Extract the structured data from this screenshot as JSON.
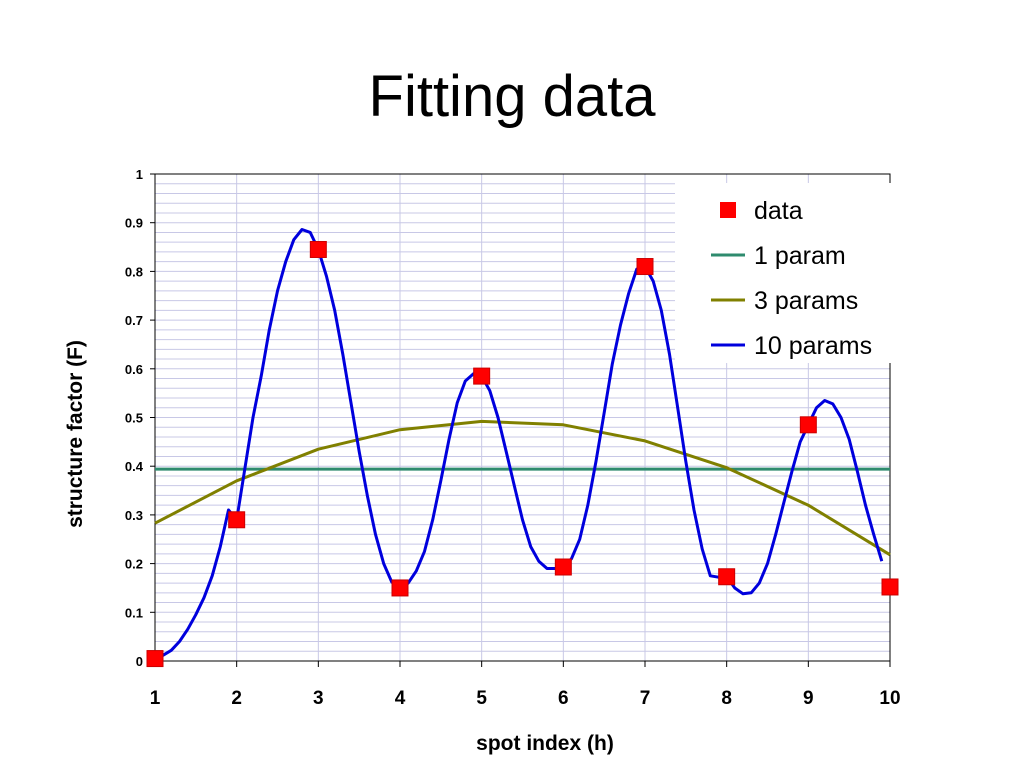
{
  "chart_data": {
    "type": "line",
    "title": "Fitting data",
    "xlabel": "spot index (h)",
    "ylabel": "structure factor (F)",
    "xlim": [
      1,
      10
    ],
    "ylim": [
      0,
      1
    ],
    "x_ticks": [
      "1",
      "2",
      "3",
      "4",
      "5",
      "6",
      "7",
      "8",
      "9",
      "10"
    ],
    "y_ticks": [
      "0",
      "0.1",
      "0.2",
      "0.3",
      "0.4",
      "0.5",
      "0.6",
      "0.7",
      "0.8",
      "0.9",
      "1"
    ],
    "grid": true,
    "legend_position": "top-right",
    "series": [
      {
        "name": "data",
        "style": "markers",
        "color": "#ff0000",
        "points": [
          [
            1,
            0.005
          ],
          [
            2,
            0.29
          ],
          [
            3,
            0.845
          ],
          [
            4,
            0.15
          ],
          [
            5,
            0.585
          ],
          [
            6,
            0.193
          ],
          [
            7,
            0.81
          ],
          [
            8,
            0.173
          ],
          [
            9,
            0.485
          ],
          [
            10,
            0.152
          ]
        ]
      },
      {
        "name": "1 param",
        "style": "line",
        "color": "#2e8b6e",
        "points": [
          [
            1,
            0.394
          ],
          [
            10,
            0.394
          ]
        ]
      },
      {
        "name": "3 params",
        "style": "line",
        "color": "#808000",
        "points": [
          [
            1,
            0.283
          ],
          [
            2,
            0.37
          ],
          [
            3,
            0.435
          ],
          [
            4,
            0.475
          ],
          [
            5,
            0.492
          ],
          [
            6,
            0.485
          ],
          [
            7,
            0.452
          ],
          [
            8,
            0.397
          ],
          [
            9,
            0.32
          ],
          [
            10,
            0.218
          ]
        ]
      },
      {
        "name": "10 params",
        "style": "line",
        "color": "#0000dd",
        "points": [
          [
            1,
            0.005
          ],
          [
            1.1,
            0.012
          ],
          [
            1.2,
            0.022
          ],
          [
            1.3,
            0.04
          ],
          [
            1.4,
            0.065
          ],
          [
            1.5,
            0.095
          ],
          [
            1.6,
            0.13
          ],
          [
            1.7,
            0.175
          ],
          [
            1.8,
            0.235
          ],
          [
            1.9,
            0.31
          ],
          [
            2,
            0.29
          ],
          [
            2.2,
            0.5
          ],
          [
            2.3,
            0.585
          ],
          [
            2.4,
            0.68
          ],
          [
            2.5,
            0.76
          ],
          [
            2.6,
            0.82
          ],
          [
            2.7,
            0.865
          ],
          [
            2.8,
            0.886
          ],
          [
            2.9,
            0.88
          ],
          [
            3,
            0.845
          ],
          [
            3.1,
            0.79
          ],
          [
            3.2,
            0.72
          ],
          [
            3.3,
            0.63
          ],
          [
            3.4,
            0.53
          ],
          [
            3.5,
            0.43
          ],
          [
            3.6,
            0.34
          ],
          [
            3.7,
            0.26
          ],
          [
            3.8,
            0.2
          ],
          [
            3.9,
            0.162
          ],
          [
            4,
            0.15
          ],
          [
            4.1,
            0.16
          ],
          [
            4.2,
            0.185
          ],
          [
            4.3,
            0.225
          ],
          [
            4.4,
            0.29
          ],
          [
            4.5,
            0.37
          ],
          [
            4.6,
            0.455
          ],
          [
            4.7,
            0.53
          ],
          [
            4.8,
            0.575
          ],
          [
            4.9,
            0.59
          ],
          [
            5,
            0.585
          ],
          [
            5.1,
            0.555
          ],
          [
            5.2,
            0.5
          ],
          [
            5.3,
            0.43
          ],
          [
            5.4,
            0.36
          ],
          [
            5.5,
            0.29
          ],
          [
            5.6,
            0.235
          ],
          [
            5.7,
            0.205
          ],
          [
            5.8,
            0.19
          ],
          [
            5.9,
            0.19
          ],
          [
            6,
            0.193
          ],
          [
            6.1,
            0.21
          ],
          [
            6.2,
            0.25
          ],
          [
            6.3,
            0.32
          ],
          [
            6.4,
            0.41
          ],
          [
            6.5,
            0.51
          ],
          [
            6.6,
            0.61
          ],
          [
            6.7,
            0.69
          ],
          [
            6.8,
            0.755
          ],
          [
            6.9,
            0.805
          ],
          [
            7,
            0.81
          ],
          [
            7.1,
            0.78
          ],
          [
            7.2,
            0.72
          ],
          [
            7.3,
            0.63
          ],
          [
            7.4,
            0.52
          ],
          [
            7.5,
            0.41
          ],
          [
            7.6,
            0.31
          ],
          [
            7.7,
            0.23
          ],
          [
            7.8,
            0.175
          ],
          [
            7.9,
            0.172
          ],
          [
            8,
            0.173
          ],
          [
            8.1,
            0.15
          ],
          [
            8.2,
            0.138
          ],
          [
            8.3,
            0.14
          ],
          [
            8.4,
            0.16
          ],
          [
            8.5,
            0.2
          ],
          [
            8.6,
            0.26
          ],
          [
            8.7,
            0.325
          ],
          [
            8.8,
            0.39
          ],
          [
            8.9,
            0.45
          ],
          [
            9,
            0.485
          ],
          [
            9.1,
            0.52
          ],
          [
            9.2,
            0.535
          ],
          [
            9.3,
            0.528
          ],
          [
            9.4,
            0.5
          ],
          [
            9.5,
            0.455
          ],
          [
            9.6,
            0.39
          ],
          [
            9.7,
            0.32
          ],
          [
            9.8,
            0.26
          ],
          [
            9.9,
            0.205
          ]
        ]
      }
    ]
  }
}
